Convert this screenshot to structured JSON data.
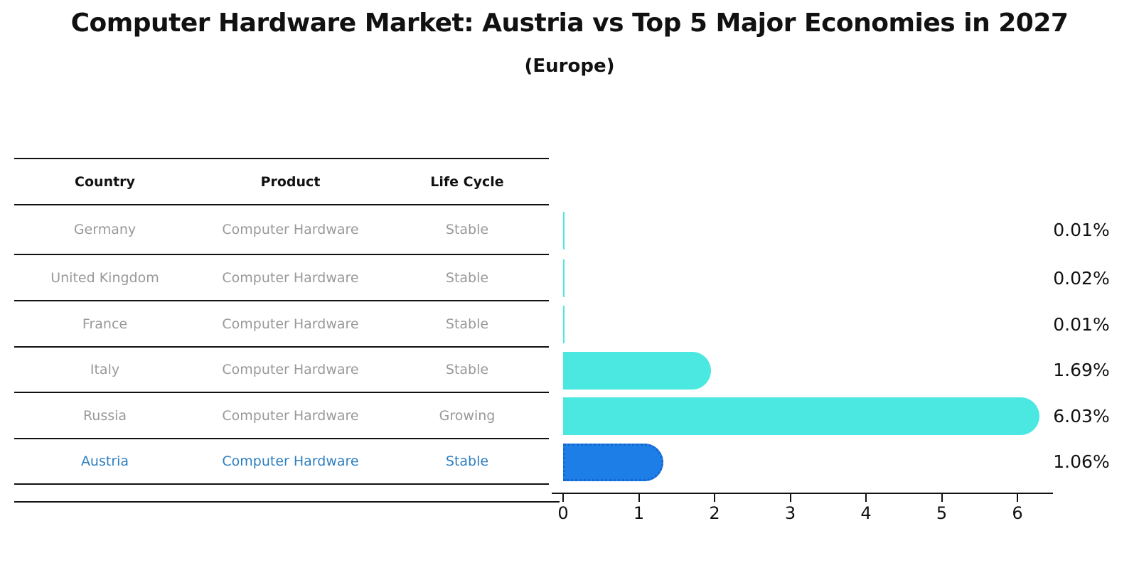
{
  "title": {
    "text": "Computer Hardware Market: Austria vs Top 5 Major Economies in 2027",
    "subtitle": "(Europe)"
  },
  "table": {
    "headers": [
      "Country",
      "Product",
      "Life Cycle"
    ],
    "rows": [
      {
        "country": "Germany",
        "product": "Computer Hardware",
        "life_cycle": "Stable",
        "highlighted": false
      },
      {
        "country": "United Kingdom",
        "product": "Computer Hardware",
        "life_cycle": "Stable",
        "highlighted": false
      },
      {
        "country": "France",
        "product": "Computer Hardware",
        "life_cycle": "Stable",
        "highlighted": false
      },
      {
        "country": "Italy",
        "product": "Computer Hardware",
        "life_cycle": "Stable",
        "highlighted": false
      },
      {
        "country": "Russia",
        "product": "Computer Hardware",
        "life_cycle": "Growing",
        "highlighted": false
      },
      {
        "country": "Austria",
        "product": "Computer Hardware",
        "life_cycle": "Stable",
        "highlighted": true
      }
    ]
  },
  "chart_data": {
    "type": "bar",
    "orientation": "horizontal",
    "title": "Computer Hardware Market: Austria vs Top 5 Major Economies in 2027",
    "subtitle": "(Europe)",
    "categories": [
      "Germany",
      "United Kingdom",
      "France",
      "Italy",
      "Russia",
      "Austria"
    ],
    "values": [
      0.01,
      0.02,
      0.01,
      1.69,
      6.03,
      1.06
    ],
    "value_labels": [
      "0.01%",
      "0.02%",
      "0.01%",
      "1.69%",
      "6.03%",
      "1.06%"
    ],
    "highlight_index": 5,
    "xlabel": "",
    "ylabel": "",
    "xlim": [
      0,
      6.6
    ],
    "x_axis": {
      "ticks": [
        "0",
        "1",
        "2",
        "3",
        "4",
        "5",
        "6"
      ]
    },
    "grid": false,
    "legend": false,
    "colors": {
      "bar_default": "#4be8e2",
      "bar_highlight": "#1e7ee8",
      "bar_highlight_border": "#1467cc",
      "highlight_text": "#2e7fc1",
      "row_text": "#999999",
      "line": "#111111"
    }
  }
}
